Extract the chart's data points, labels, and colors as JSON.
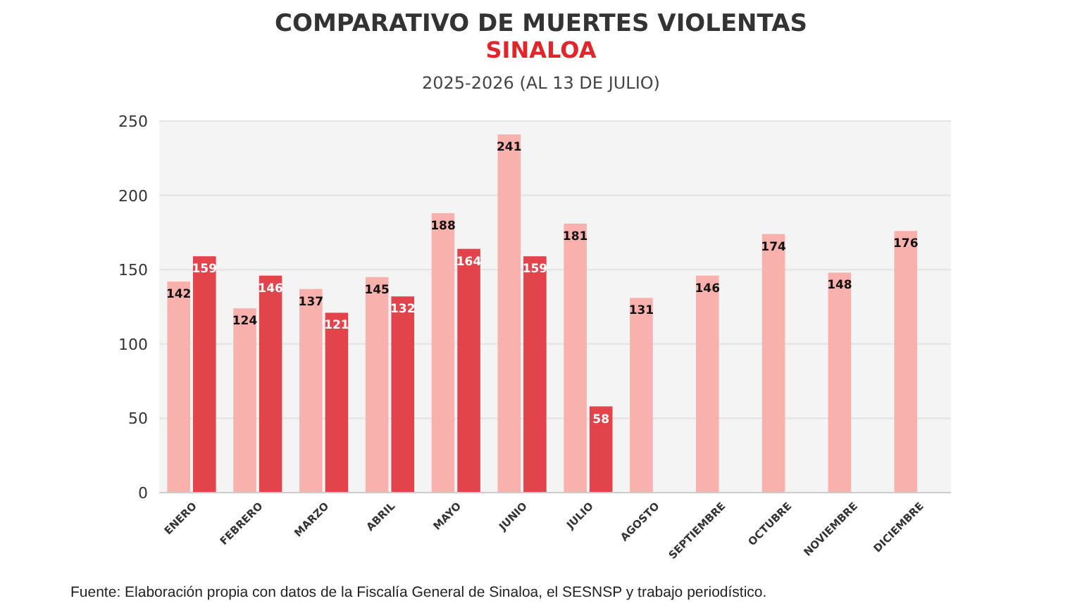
{
  "chart_data": {
    "type": "bar",
    "title": "COMPARATIVO DE MUERTES VIOLENTAS",
    "subtitle": "SINALOA",
    "annotations": [
      "2025-2026 (AL 13 DE JULIO)",
      "Fuente: Elaboración propia con datos de la Fiscalía General de Sinaloa, el SESNSP y trabajo periodístico."
    ],
    "categories": [
      "ENERO",
      "FEBRERO",
      "MARZO",
      "ABRIL",
      "MAYO",
      "JUNIO",
      "JULIO",
      "AGOSTO",
      "SEPTIEMBRE",
      "OCTUBRE",
      "NOVIEMBRE",
      "DICIEMBRE"
    ],
    "series": [
      {
        "color": "#f9b1ae",
        "values": [
          142,
          124,
          137,
          145,
          188,
          241,
          181,
          131,
          146,
          174,
          148,
          176
        ]
      },
      {
        "color": "#e3434a",
        "values": [
          159,
          146,
          121,
          132,
          164,
          159,
          58,
          null,
          null,
          null,
          null,
          null
        ]
      }
    ],
    "ylim": [
      0,
      250
    ],
    "yticks": [
      0,
      50,
      100,
      150,
      200,
      250
    ],
    "grid": "y",
    "data_labels": true
  }
}
